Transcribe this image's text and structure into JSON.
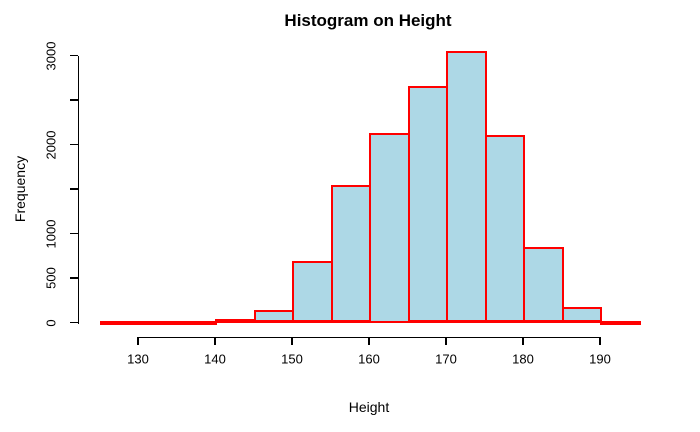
{
  "chart_data": {
    "type": "bar",
    "subtype": "histogram",
    "title": "Histogram on Height",
    "xlabel": "Height",
    "ylabel": "Frequency",
    "bin_edges": [
      125,
      130,
      135,
      140,
      145,
      150,
      155,
      160,
      165,
      170,
      175,
      180,
      185,
      190,
      195
    ],
    "bin_width": 5,
    "frequencies": [
      2,
      5,
      15,
      40,
      140,
      695,
      1540,
      2125,
      2660,
      3045,
      2105,
      845,
      170,
      20
    ],
    "xlim": [
      125,
      195
    ],
    "ylim": [
      0,
      3000
    ],
    "x_ticks": [
      {
        "value": 130,
        "label": "130"
      },
      {
        "value": 140,
        "label": "140"
      },
      {
        "value": 150,
        "label": "150"
      },
      {
        "value": 160,
        "label": "160"
      },
      {
        "value": 170,
        "label": "170"
      },
      {
        "value": 180,
        "label": "180"
      },
      {
        "value": 190,
        "label": "190"
      }
    ],
    "y_ticks": [
      {
        "value": 0,
        "label": "0"
      },
      {
        "value": 500,
        "label": "500"
      },
      {
        "value": 1000,
        "label": "1000"
      },
      {
        "value": 1500,
        "label": ""
      },
      {
        "value": 2000,
        "label": "2000"
      },
      {
        "value": 2500,
        "label": ""
      },
      {
        "value": 3000,
        "label": "3000"
      }
    ],
    "grid": "off",
    "legend": "none",
    "colors": {
      "bar_fill": "#ADD8E6",
      "bar_border": "#FF0000",
      "axis": "#000000",
      "text": "#000000",
      "background": "#FFFFFF"
    }
  }
}
